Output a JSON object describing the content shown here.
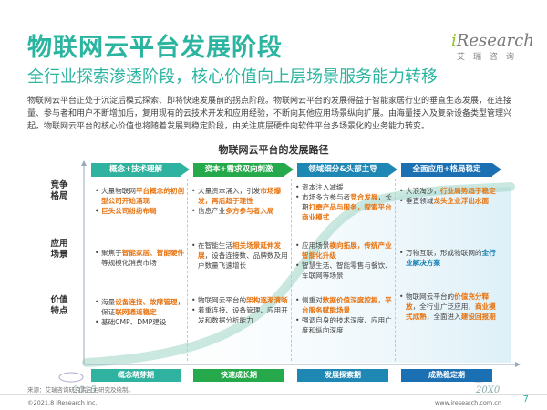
{
  "header": {
    "title": "物联网云平台发展阶段",
    "subtitle": "全行业探索渗透阶段，核心价值向上层场景服务能力转移",
    "logo_text": "iResearch",
    "logo_sub": "艾瑞咨询"
  },
  "intro": "物联网云平台正处于沉淀后模式探索、即将快速发展前的拐点阶段。物联网云平台的发展得益于智能家居行业的垂直生态发展，在连接量、参与者和用户不断增加后，复用现有的云技术开发和应用经验，不断向其他应用场景纵向扩展。由海量接入及复杂设备类型管理兴起，物联网云平台的核心价值也将随着发展到稳定阶段，由关注底层硬件向软件平台多场景化的业务能力转变。",
  "chart": {
    "title": "物联网云平台的发展路径",
    "rows": [
      "竞争格局",
      "应用场景",
      "价值特点"
    ],
    "stages": [
      {
        "head": "概念+技术理解",
        "phase": "概念萌芽期",
        "color": "#2fb3a0",
        "competition": [
          "大量物联网平台概念的初创型公司开始涌现",
          "巨头公司纷纷布局"
        ],
        "scenario": [
          "聚焦于智能家居、智能硬件等规模化消费市场"
        ],
        "value": [
          "海量设备连接、故障管理，保证联网通道稳定",
          "基础CMP、DMP建设"
        ]
      },
      {
        "head": "资本+需求双向刺激",
        "phase": "快速成长期",
        "color": "#25a94a",
        "competition": [
          "大量资本涌入，引发市场爆发，再后趋于理性",
          "信息产业多方参与者入局"
        ],
        "scenario": [
          "在智能生活相关场景延伸发展，设备连接数、品牌数及用户数量飞速增长"
        ],
        "value": [
          "物联网云平台的架构逐渐清晰",
          "着重连接、设备管理、应用开发和数据分析能力"
        ]
      },
      {
        "head": "领域细分&头部主导",
        "phase": "发展探索期",
        "color": "#1f87b4",
        "competition": [
          "资本注入减缓",
          "市场多方参与者竞合发展，长期打磨产品与服务，探索平台商业模式"
        ],
        "scenario": [
          "应用场景横向拓展，传统产业智能化升级",
          "智慧生活、智能零售与餐饮、车联网等场景"
        ],
        "value": [
          "侧重对数据价值深度挖掘，平台服务赋能场景",
          "强调自身的技术深度、应用广度和纵向深度"
        ]
      },
      {
        "head": "全面应用+格局稳定",
        "phase": "成熟稳定期",
        "color": "#1b6fb3",
        "competition": [
          "大浪淘沙，行业局势趋于稳定",
          "垂直领域龙头企业浮出水面"
        ],
        "scenario": [
          "万物互联，形成物联网的全行业解决方案"
        ],
        "value": [
          "物联网云平台的价值充分释放，全行业广泛应用，商业模式成熟，全面进入建设回报期"
        ]
      }
    ],
    "year_start": "2015",
    "year_end": "20X0"
  },
  "footer": {
    "source": "来源：艾瑞咨询研究院自主研究及绘制。",
    "copyright": "©2021.8 iResearch Inc.",
    "site": "www.iresearch.com.cn",
    "page": "7"
  }
}
